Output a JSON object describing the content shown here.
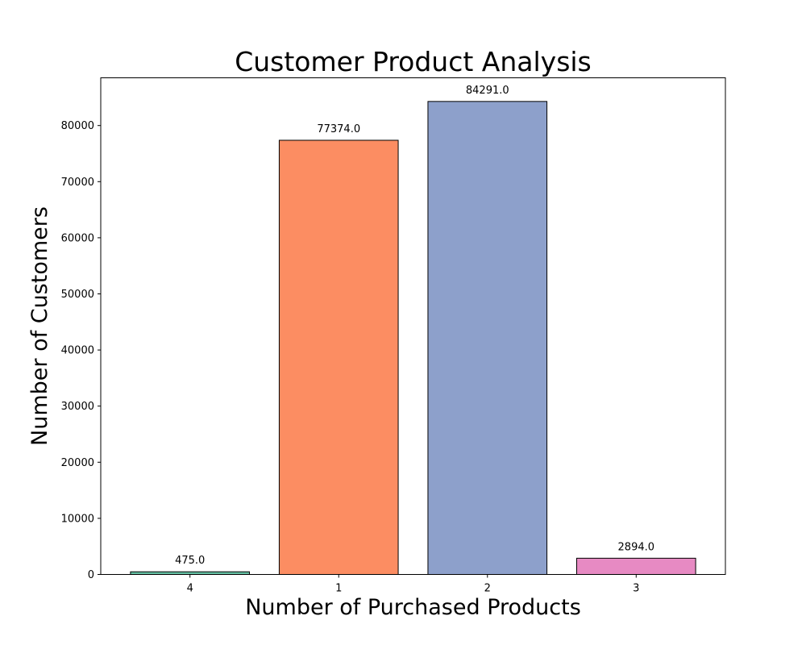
{
  "chart_data": {
    "type": "bar",
    "title": "Customer Product Analysis",
    "xlabel": "Number of Purchased Products",
    "ylabel": "Number of Customers",
    "categories": [
      "4",
      "1",
      "2",
      "3"
    ],
    "values": [
      475.0,
      77374.0,
      84291.0,
      2894.0
    ],
    "value_labels": [
      "475.0",
      "77374.0",
      "84291.0",
      "2894.0"
    ],
    "colors": [
      "#66c2a5",
      "#fc8d62",
      "#8da0cb",
      "#e78ac3"
    ],
    "edge_color": "#000000",
    "ylim": [
      0,
      88506
    ],
    "yticks": [
      0,
      10000,
      20000,
      30000,
      40000,
      50000,
      60000,
      70000,
      80000
    ],
    "ytick_labels": [
      "0",
      "10000",
      "20000",
      "30000",
      "40000",
      "50000",
      "60000",
      "70000",
      "80000"
    ],
    "grid": false,
    "legend": "none"
  }
}
